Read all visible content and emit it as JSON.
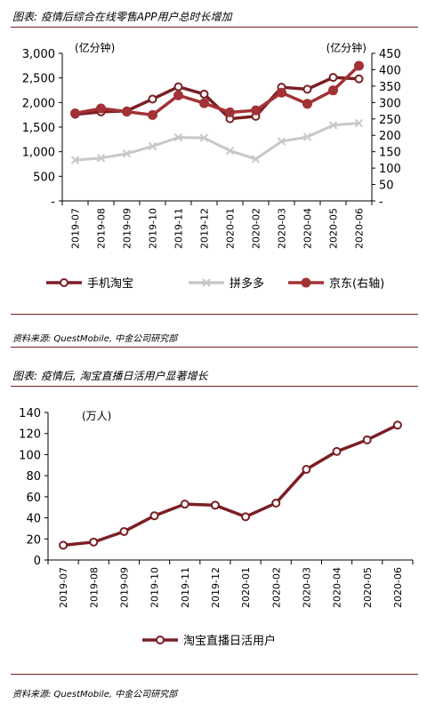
{
  "figures": [
    {
      "title": "图表: 疫情后综合在线零售APP用户总时长增加",
      "source": "资料来源: QuestMobile, 中金公司研究部"
    },
    {
      "title": "图表: 疫情后, 淘宝直播日活用户显著增长",
      "source": "资料来源: QuestMobile, 中金公司研究部"
    }
  ],
  "colors": {
    "dark_red": "#7a1f24",
    "red": "#a23236",
    "grey": "#c8c8c8"
  },
  "chart_data": [
    {
      "type": "line",
      "title": "图表: 疫情后综合在线零售APP用户总时长增加",
      "categories": [
        "2019-07",
        "2019-08",
        "2019-09",
        "2019-10",
        "2019-11",
        "2019-12",
        "2020-01",
        "2020-02",
        "2020-03",
        "2020-04",
        "2020-05",
        "2020-06"
      ],
      "y_left": {
        "unit": "(亿分钟)",
        "range": [
          0,
          3000
        ],
        "ticks": [
          "-",
          "500",
          "1,000",
          "1,500",
          "2,000",
          "2,500",
          "3,000"
        ]
      },
      "y_right": {
        "unit": "(亿分钟)",
        "range": [
          0,
          450
        ],
        "ticks": [
          "-",
          "50",
          "100",
          "150",
          "200",
          "250",
          "300",
          "350",
          "400",
          "450"
        ]
      },
      "series": [
        {
          "name": "手机淘宝",
          "axis": "left",
          "marker": "hollow",
          "color": "#7a1f24",
          "values": [
            1760,
            1810,
            1830,
            2070,
            2320,
            2170,
            1670,
            1720,
            2310,
            2270,
            2510,
            2480
          ]
        },
        {
          "name": "拼多多",
          "axis": "left",
          "marker": "x",
          "color": "#c8c8c8",
          "values": [
            830,
            870,
            960,
            1110,
            1290,
            1280,
            1020,
            850,
            1210,
            1300,
            1540,
            1580
          ]
        },
        {
          "name": "京东(右轴)",
          "axis": "right",
          "marker": "filled",
          "color": "#a23236",
          "values": [
            267,
            282,
            272,
            262,
            322,
            298,
            270,
            276,
            330,
            296,
            337,
            412
          ]
        }
      ],
      "legend": [
        "手机淘宝",
        "拼多多",
        "京东(右轴)"
      ],
      "legend_position": "bottom",
      "grid": false
    },
    {
      "type": "line",
      "title": "图表: 疫情后, 淘宝直播日活用户显著增长",
      "categories": [
        "2019-07",
        "2019-08",
        "2019-09",
        "2019-10",
        "2019-11",
        "2019-12",
        "2020-01",
        "2020-02",
        "2020-03",
        "2020-04",
        "2020-05",
        "2020-06"
      ],
      "y": {
        "unit": "(万人)",
        "range": [
          0,
          140
        ],
        "ticks": [
          "0",
          "20",
          "40",
          "60",
          "80",
          "100",
          "120",
          "140"
        ]
      },
      "series": [
        {
          "name": "淘宝直播日活用户",
          "marker": "hollow",
          "color": "#7a1f24",
          "values": [
            14,
            17,
            27,
            42,
            53,
            52,
            41,
            54,
            86,
            103,
            114,
            128
          ]
        }
      ],
      "legend": [
        "淘宝直播日活用户"
      ],
      "legend_position": "bottom",
      "grid": false
    }
  ]
}
